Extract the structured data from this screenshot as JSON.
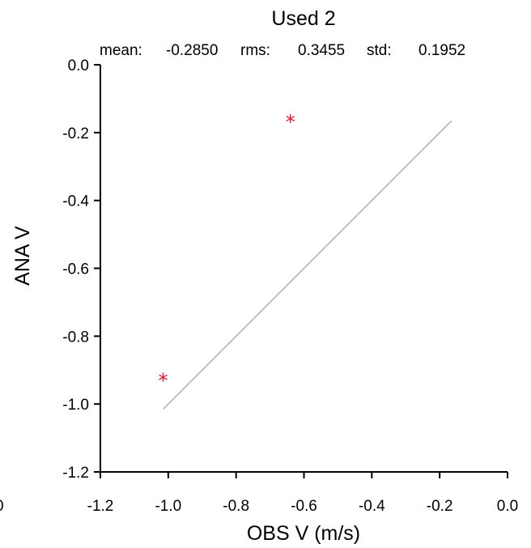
{
  "chart_data": {
    "type": "scatter",
    "title": "Used  2",
    "stats": {
      "mean_label": "mean:",
      "mean_value": "-0.2850",
      "rms_label": "rms:",
      "rms_value": "0.3455",
      "std_label": "std:",
      "std_value": "0.1952"
    },
    "xlabel": "OBS V  (m/s)",
    "ylabel": "ANA V",
    "xlim": [
      -1.2,
      0.0
    ],
    "ylim": [
      -1.2,
      0.0
    ],
    "x_ticks": [
      "-1.2",
      "-1.0",
      "-0.8",
      "-0.6",
      "-0.4",
      "-0.2",
      "0.0"
    ],
    "x_tick_values": [
      -1.2,
      -1.0,
      -0.8,
      -0.6,
      -0.4,
      -0.2,
      0.0
    ],
    "y_ticks": [
      "0.0",
      "-0.2",
      "-0.4",
      "-0.6",
      "-0.8",
      "-1.0",
      "-1.2"
    ],
    "y_tick_values": [
      0.0,
      -0.2,
      -0.4,
      -0.6,
      -0.8,
      -1.0,
      -1.2
    ],
    "points": [
      {
        "x": -1.015,
        "y": -0.925
      },
      {
        "x": -0.64,
        "y": -0.162
      }
    ],
    "reference_line": {
      "x": [
        -1.015,
        -0.165
      ],
      "y": [
        -1.015,
        -0.165
      ]
    },
    "marker": "*",
    "marker_color": "#e8112d",
    "line_color": "#c0c0c0",
    "grid": false,
    "clipped_left_tick": "0"
  }
}
